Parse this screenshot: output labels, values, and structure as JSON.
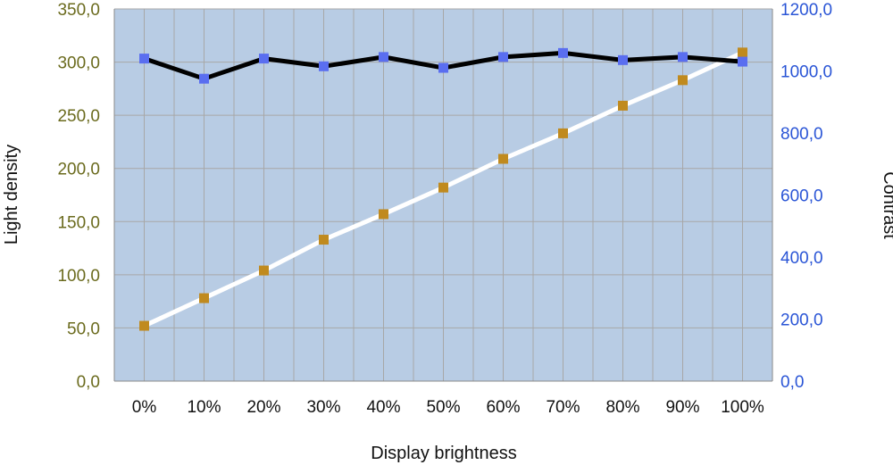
{
  "chart_data": {
    "type": "line",
    "title": "",
    "xlabel": "Display brightness",
    "ylabel_left": "Light density",
    "ylabel_right": "Contrast",
    "categories": [
      "0%",
      "10%",
      "20%",
      "30%",
      "40%",
      "50%",
      "60%",
      "70%",
      "80%",
      "90%",
      "100%"
    ],
    "ylim_left": [
      0,
      350
    ],
    "ylim_right": [
      0,
      1200
    ],
    "yticks_left": [
      "0,0",
      "50,0",
      "100,0",
      "150,0",
      "200,0",
      "250,0",
      "300,0",
      "350,0"
    ],
    "yticks_right": [
      "0,0",
      "200,0",
      "400,0",
      "600,0",
      "800,0",
      "1000,0",
      "1200,0"
    ],
    "grid": true,
    "legend": "none",
    "series": [
      {
        "axis": "left",
        "line_color": "#ffffff",
        "marker_color": "#c08a1e",
        "values": [
          52,
          78,
          104,
          133,
          157,
          182,
          209,
          233,
          259,
          283,
          309
        ]
      },
      {
        "axis": "right",
        "line_color": "#000000",
        "marker_color": "#5a6ef0",
        "values": [
          1040,
          975,
          1040,
          1015,
          1045,
          1010,
          1045,
          1058,
          1035,
          1045,
          1030
        ]
      }
    ],
    "colors": {
      "plot_background": "#b8cce4",
      "grid": "#a7a7a7",
      "left_ticks": "#6b6b1e",
      "right_ticks": "#2a55d6"
    }
  }
}
